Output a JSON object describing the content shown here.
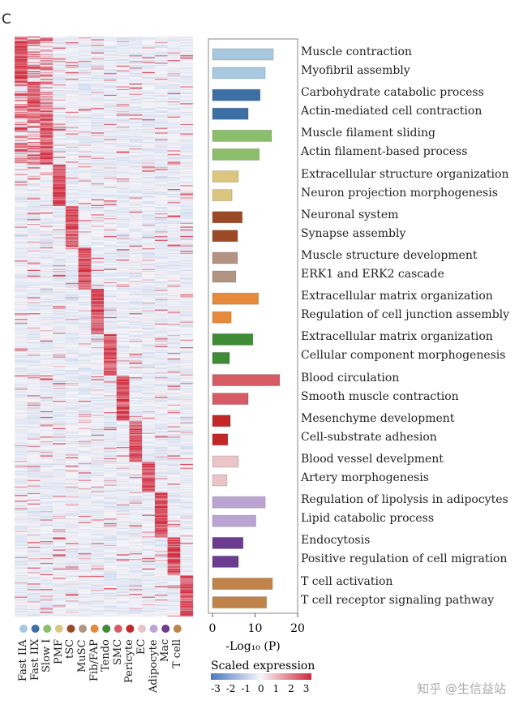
{
  "panel_label": "C",
  "watermark": "知乎 @生信益站",
  "chart_data": [
    {
      "type": "heatmap",
      "title": "",
      "legend_title": "Scaled expression",
      "color_range": [
        -3,
        3
      ],
      "legend_ticks": [
        "-3",
        "-2",
        "-1",
        "0",
        "1",
        "2",
        "3"
      ],
      "colors": {
        "low": "#4a78c0",
        "mid": "#f6f6fa",
        "high": "#d0283c"
      },
      "columns": [
        "Fast IIA",
        "Fast IIX",
        "Slow I",
        "PMF",
        "tSC",
        "MuSC",
        "Fib/FAP",
        "Tendo",
        "SMC",
        "Pericyte",
        "EC",
        "Adipocyte",
        "Mac",
        "T cell"
      ],
      "column_colors": [
        "#a7c8de",
        "#3c6fa3",
        "#8bbd6a",
        "#dcc57f",
        "#9c4a25",
        "#b39483",
        "#e5893a",
        "#3f8b36",
        "#d65b65",
        "#c42727",
        "#ebc4c8",
        "#bba4d2",
        "#6b3c8f",
        "#c0834a"
      ],
      "row_block_counts": [
        12,
        11,
        11,
        11,
        11,
        11,
        12,
        11,
        12,
        11,
        8,
        12,
        10,
        11
      ]
    },
    {
      "type": "bar",
      "orientation": "horizontal",
      "xlabel": "-Log₁₀ (P)",
      "xlim": [
        0,
        20
      ],
      "xticks": [
        "0",
        "10",
        "20"
      ],
      "categories": [
        "Muscle contraction",
        "Myofibril assembly",
        "Carbohydrate catabolic process",
        "Actin-mediated cell contraction",
        "Muscle filament sliding",
        "Actin filament-based process",
        "Extracellular structure organization",
        "Neuron projection morphogenesis",
        "Neuronal system",
        "Synapse assembly",
        "Muscle structure development",
        "ERK1 and ERK2 cascade",
        "Extracellular matrix organization",
        "Regulation of cell junction assembly",
        "Extracellular matrix organization",
        "Cellular component morphogenesis",
        "Blood circulation",
        "Smooth muscle contraction",
        "Mesenchyme development",
        "Cell-substrate adhesion",
        "Blood vessel develpment",
        "Artery morphogenesis",
        "Regulation of lipolysis in adipocytes",
        "Lipid catabolic process",
        "Endocytosis",
        "Positive regulation of cell migration",
        "T cell activation",
        "T cell receptor signaling pathway"
      ],
      "values": [
        14.3,
        12.4,
        11.2,
        8.4,
        13.9,
        11.0,
        6.1,
        4.6,
        7.0,
        5.9,
        5.9,
        5.5,
        10.8,
        4.4,
        9.5,
        4.0,
        15.8,
        8.4,
        4.2,
        3.6,
        6.1,
        3.4,
        12.4,
        10.2,
        7.2,
        6.1,
        14.1,
        12.7
      ]
    }
  ]
}
